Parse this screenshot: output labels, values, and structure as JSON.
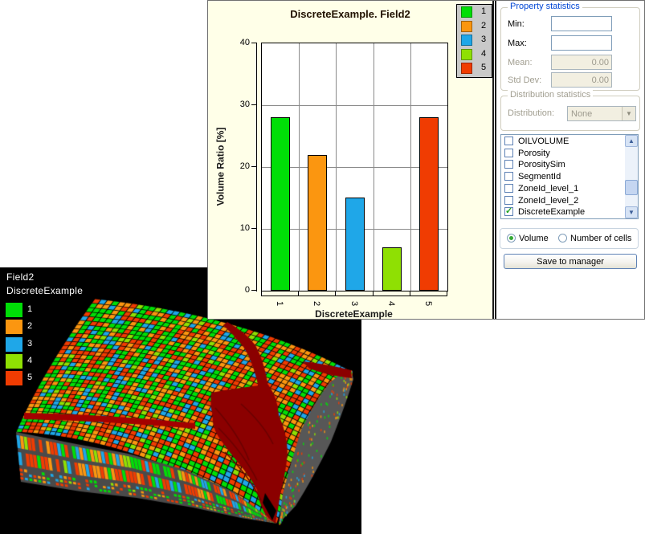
{
  "chart_window": {
    "chart": {
      "title": "DiscreteExample. Field2",
      "y_label": "Volume Ratio [%]",
      "x_label": "DiscreteExample",
      "y_ticks": [
        "0",
        "10",
        "20",
        "30",
        "40"
      ],
      "y_max": 40,
      "categories": [
        "1",
        "2",
        "3",
        "4",
        "5"
      ],
      "values": [
        28,
        22,
        15,
        7,
        28
      ],
      "colors": [
        "#00DE07",
        "#FB9610",
        "#1FA7E8",
        "#8FE003",
        "#F03C02"
      ],
      "legend": [
        {
          "label": "1",
          "color": "#00DE07"
        },
        {
          "label": "2",
          "color": "#FB9610"
        },
        {
          "label": "3",
          "color": "#1FA7E8"
        },
        {
          "label": "4",
          "color": "#8FE003"
        },
        {
          "label": "5",
          "color": "#F03C02"
        }
      ]
    },
    "panel": {
      "property_statistics": {
        "title": "Property statistics",
        "min_label": "Min:",
        "min_value": "",
        "max_label": "Max:",
        "max_value": "",
        "mean_label": "Mean:",
        "mean_value": "0.00",
        "std_label": "Std Dev:",
        "std_value": "0.00"
      },
      "distribution_statistics": {
        "title": "Distribution statistics",
        "distribution_label": "Distribution:",
        "distribution_value": "None"
      },
      "properties_list": [
        {
          "label": "OILVOLUME",
          "checked": false
        },
        {
          "label": "Porosity",
          "checked": false
        },
        {
          "label": "PorositySim",
          "checked": false
        },
        {
          "label": "SegmentId",
          "checked": false
        },
        {
          "label": "ZoneId_level_1",
          "checked": false
        },
        {
          "label": "ZoneId_level_2",
          "checked": false
        },
        {
          "label": "DiscreteExample",
          "checked": true
        }
      ],
      "mode_options": [
        {
          "label": "Volume",
          "selected": true
        },
        {
          "label": "Number of cells",
          "selected": false
        }
      ],
      "save_button_label": "Save to manager"
    }
  },
  "view3d": {
    "label_line1": "Field2",
    "label_line2": "DiscreteExample",
    "legend": [
      {
        "label": "1",
        "color": "#00DE07"
      },
      {
        "label": "2",
        "color": "#FB9610"
      },
      {
        "label": "3",
        "color": "#1FA7E8"
      },
      {
        "label": "4",
        "color": "#8FE003"
      },
      {
        "label": "5",
        "color": "#F03C02"
      }
    ],
    "palette": [
      "#00DE07",
      "#FB9610",
      "#1FA7E8",
      "#8FE003",
      "#F03C02"
    ],
    "weights": [
      0.28,
      0.22,
      0.15,
      0.07,
      0.28
    ],
    "fault_color": "#8B0000"
  },
  "chart_data": {
    "type": "bar",
    "title": "DiscreteExample. Field2",
    "xlabel": "DiscreteExample",
    "ylabel": "Volume Ratio [%]",
    "categories": [
      "1",
      "2",
      "3",
      "4",
      "5"
    ],
    "values": [
      28,
      22,
      15,
      7,
      28
    ],
    "ylim": [
      0,
      40
    ],
    "grid": true,
    "legend_position": "top-right",
    "legend_entries": [
      "1",
      "2",
      "3",
      "4",
      "5"
    ],
    "bar_colors": [
      "#00DE07",
      "#FB9610",
      "#1FA7E8",
      "#8FE003",
      "#F03C02"
    ]
  }
}
